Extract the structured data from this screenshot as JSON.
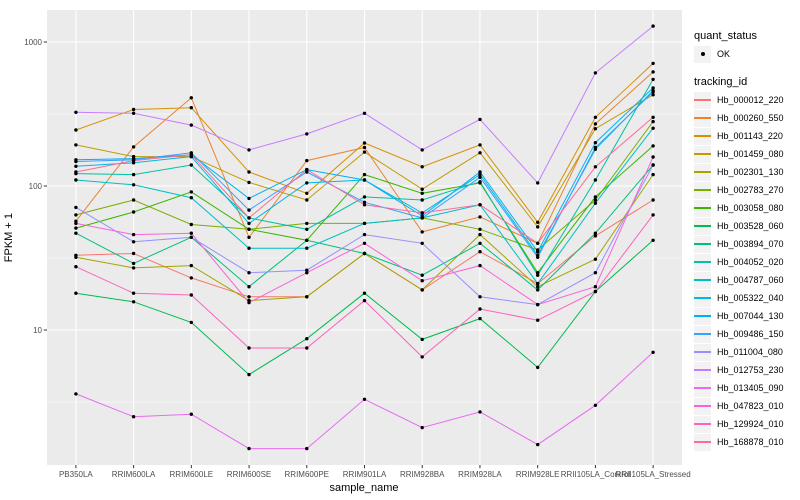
{
  "chart_data": {
    "type": "line",
    "title": "",
    "xlabel": "sample_name",
    "ylabel": "FPKM + 1",
    "y_scale": "log10",
    "grid": "white major/minor on grey panel",
    "legend_position": "right",
    "ylim": [
      1.15,
      1660
    ],
    "y_ticks": [
      {
        "label": "10",
        "value": 10
      },
      {
        "label": "100",
        "value": 100
      },
      {
        "label": "1000",
        "value": 1000
      }
    ],
    "y_minor_values": [
      3.162,
      31.62,
      316.2
    ],
    "categories": [
      "PB350LA",
      "RRIM600LA",
      "RRIM600LE",
      "RRIM600SE",
      "RRIM600PE",
      "RRIM901LA",
      "RRIM928BA",
      "RRIM928LA",
      "RRIM928LE",
      "RRII105LA_Control",
      "RRII105LA_Stressed"
    ],
    "series": [
      {
        "name": "Hb_000012_220",
        "color": "#F8766D",
        "values": [
          33,
          34,
          23,
          17,
          17,
          34,
          19,
          35,
          21,
          45,
          80
        ]
      },
      {
        "name": "Hb_000260_550",
        "color": "#EA8331",
        "values": [
          57,
          187,
          410,
          44,
          150,
          185,
          48,
          61,
          40,
          270,
          620
        ]
      },
      {
        "name": "Hb_001143_220",
        "color": "#D89000",
        "values": [
          245,
          340,
          350,
          125,
          89,
          199,
          136,
          193,
          56,
          300,
          710
        ]
      },
      {
        "name": "Hb_001459_080",
        "color": "#C09B00",
        "values": [
          193,
          160,
          160,
          106,
          80,
          172,
          95,
          170,
          52,
          250,
          430
        ]
      },
      {
        "name": "Hb_002301_130",
        "color": "#A3A500",
        "values": [
          32,
          27,
          28,
          16,
          17,
          34,
          19,
          46,
          20,
          31,
          120
        ]
      },
      {
        "name": "Hb_002783_270",
        "color": "#7CAE00",
        "values": [
          63,
          80,
          54,
          50,
          55,
          55,
          60,
          50,
          36,
          80,
          280
        ]
      },
      {
        "name": "Hb_003058_080",
        "color": "#39B600",
        "values": [
          51,
          66,
          91,
          50,
          42,
          120,
          89,
          105,
          25,
          84,
          190
        ]
      },
      {
        "name": "Hb_003528_060",
        "color": "#00BB4E",
        "values": [
          18,
          15.7,
          11.3,
          4.9,
          8.7,
          18,
          8.6,
          12,
          5.5,
          18.5,
          42
        ]
      },
      {
        "name": "Hb_003894_070",
        "color": "#00BF7D",
        "values": [
          47,
          29,
          44,
          20,
          42,
          34,
          24,
          40,
          19,
          47,
          140
        ]
      },
      {
        "name": "Hb_004052_020",
        "color": "#00C1A3",
        "values": [
          122,
          120,
          140,
          60,
          50,
          84,
          80,
          107,
          24,
          110,
          550
        ]
      },
      {
        "name": "Hb_004787_060",
        "color": "#00BFC4",
        "values": [
          110,
          102,
          83,
          37,
          37,
          55,
          60,
          74,
          21,
          76,
          252
        ]
      },
      {
        "name": "Hb_005322_040",
        "color": "#00BAE0",
        "values": [
          137,
          145,
          160,
          55,
          105,
          110,
          65,
          120,
          33,
          180,
          460
        ]
      },
      {
        "name": "Hb_007044_130",
        "color": "#00B0F6",
        "values": [
          152,
          155,
          165,
          82,
          130,
          110,
          62,
          125,
          35,
          200,
          480
        ]
      },
      {
        "name": "Hb_009486_150",
        "color": "#35A2FF",
        "values": [
          148,
          152,
          170,
          68,
          125,
          77,
          60,
          115,
          32,
          185,
          450
        ]
      },
      {
        "name": "Hb_011004_080",
        "color": "#9590FF",
        "values": [
          71,
          41,
          44,
          25,
          26,
          46,
          40,
          17,
          15,
          25,
          140
        ]
      },
      {
        "name": "Hb_012753_230",
        "color": "#C77CFF",
        "values": [
          325,
          320,
          265,
          178,
          230,
          320,
          178,
          290,
          105,
          610,
          1290
        ]
      },
      {
        "name": "Hb_013405_090",
        "color": "#E76BF3",
        "values": [
          3.6,
          2.5,
          2.6,
          1.5,
          1.5,
          3.3,
          2.1,
          2.7,
          1.6,
          3.0,
          7.0
        ]
      },
      {
        "name": "Hb_047823_010",
        "color": "#FA62DB",
        "values": [
          55,
          46,
          47,
          15.5,
          25,
          40,
          22,
          28,
          15,
          20,
          159
        ]
      },
      {
        "name": "Hb_129924_010",
        "color": "#FF62BC",
        "values": [
          27.5,
          18,
          17.5,
          7.5,
          7.5,
          16,
          6.5,
          14,
          11.7,
          18.5,
          63
        ]
      },
      {
        "name": "Hb_168878_010",
        "color": "#FF6A98",
        "values": [
          125,
          150,
          165,
          60,
          130,
          74,
          65,
          74,
          40,
          136,
          300
        ]
      }
    ]
  },
  "legend": {
    "quant_status_title": "quant_status",
    "ok_label": "OK",
    "ok_symbol": "black-point",
    "tracking_title": "tracking_id"
  },
  "colors": {
    "panel_bg": "#EBEBEB",
    "grid": "#FFFFFF",
    "axis_text": "#4D4D4D",
    "tick_mark": "#333333",
    "point": "#000000",
    "background": "#FFFFFF"
  }
}
